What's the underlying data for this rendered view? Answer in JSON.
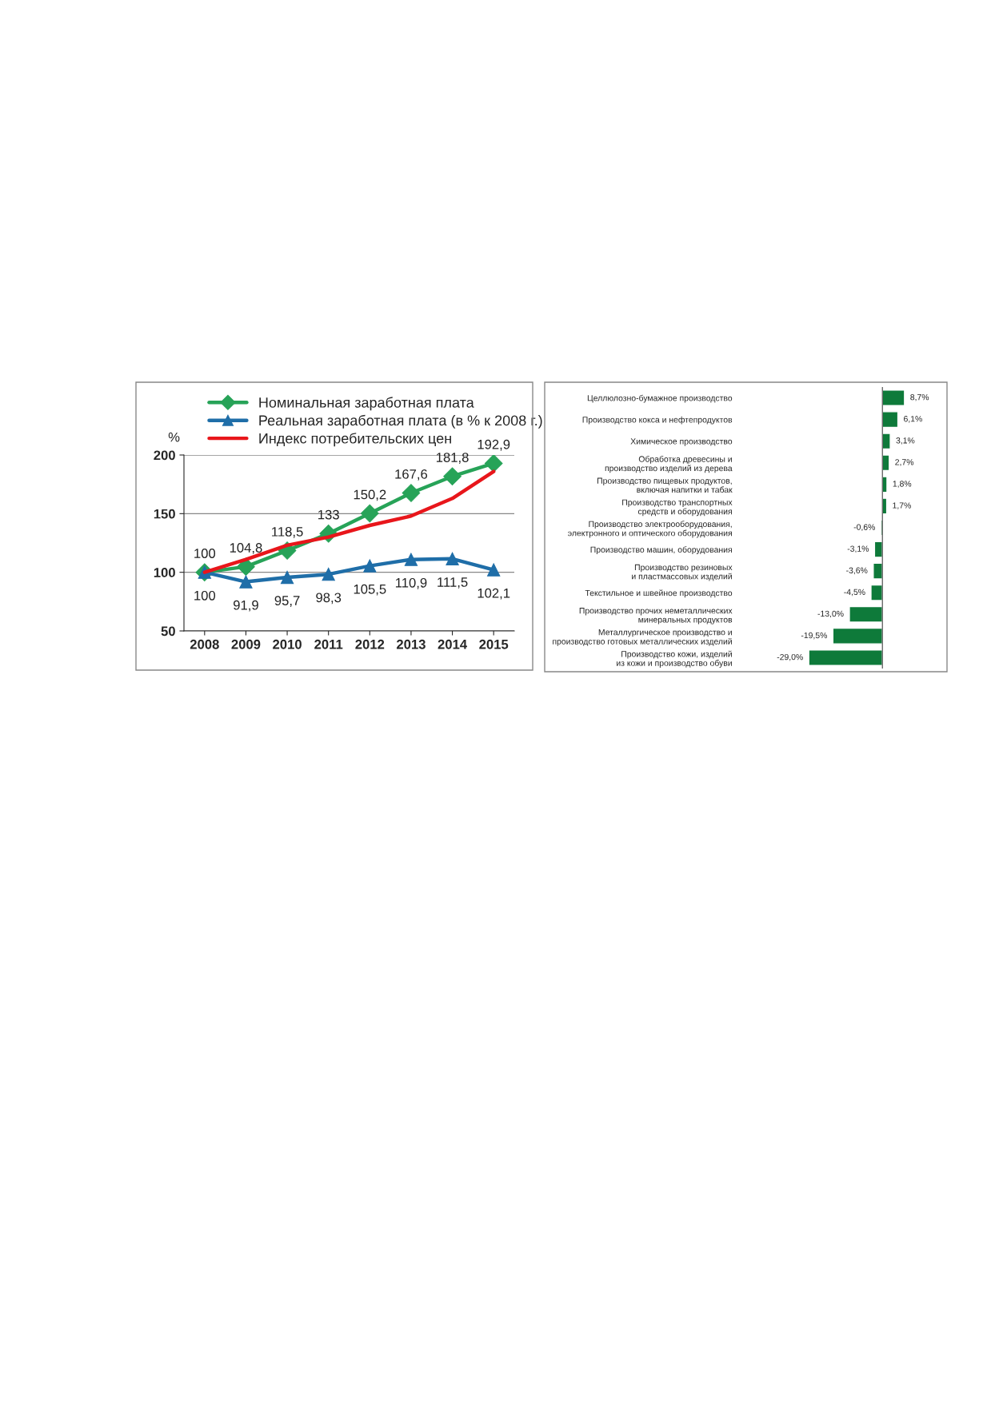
{
  "chart_data": [
    {
      "type": "line",
      "ylabel": "%",
      "categories": [
        "2008",
        "2009",
        "2010",
        "2011",
        "2012",
        "2013",
        "2014",
        "2015"
      ],
      "ylim": [
        50,
        200
      ],
      "yticks": [
        50,
        100,
        150,
        200
      ],
      "grid": "y",
      "legend": "top",
      "series": [
        {
          "name": "Номинальная заработная плата",
          "color": "#27a358",
          "marker": "diamond",
          "values": [
            100,
            104.8,
            118.5,
            133,
            150.2,
            167.6,
            181.8,
            192.9
          ],
          "value_labels": [
            "100",
            "104,8",
            "118,5",
            "133",
            "150,2",
            "167,6",
            "181,8",
            "192,9"
          ]
        },
        {
          "name": "Реальная заработная плата (в % к 2008 г.)",
          "color": "#1f6ea8",
          "marker": "triangle",
          "values": [
            100,
            91.9,
            95.7,
            98.3,
            105.5,
            110.9,
            111.5,
            102.1
          ],
          "value_labels": [
            "100",
            "91,9",
            "95,7",
            "98,3",
            "105,5",
            "110,9",
            "111,5",
            "102,1"
          ]
        },
        {
          "name": "Индекс потребительских цен",
          "color": "#e8161b",
          "marker": "none",
          "values": [
            100,
            111,
            123,
            130,
            140,
            148,
            163,
            186
          ]
        }
      ]
    },
    {
      "type": "bar",
      "orientation": "horizontal",
      "tick_labels": "y",
      "color": "#0e7a3a",
      "categories": [
        "Целлюлозно-бумажное производство",
        "Производство кокса и нефтепродуктов",
        "Химическое производство",
        "Обработка древесины и производство изделий из дерева",
        "Производство пищевых продуктов, включая напитки и табак",
        "Производство транспортных средств и оборудования",
        "Производство электрооборудования, электронного и оптического оборудования",
        "Производство машин, оборудования",
        "Производство резиновых и пластмассовых изделий",
        "Текстильное и швейное производство",
        "Производство прочих неметаллических минеральных продуктов",
        "Металлургическое производство и производство готовых металлических изделий",
        "Производство кожи, изделий из кожи и производство обуви"
      ],
      "values": [
        8.7,
        6.1,
        3.1,
        2.7,
        1.8,
        1.7,
        -0.6,
        -3.1,
        -3.6,
        -4.5,
        -13.0,
        -19.5,
        -29.0
      ],
      "value_labels": [
        "8,7%",
        "6,1%",
        "3,1%",
        "2,7%",
        "1,8%",
        "1,7%",
        "-0,6%",
        "-3,1%",
        "-3,6%",
        "-4,5%",
        "-13,0%",
        "-19,5%",
        "-29,0%"
      ]
    }
  ]
}
